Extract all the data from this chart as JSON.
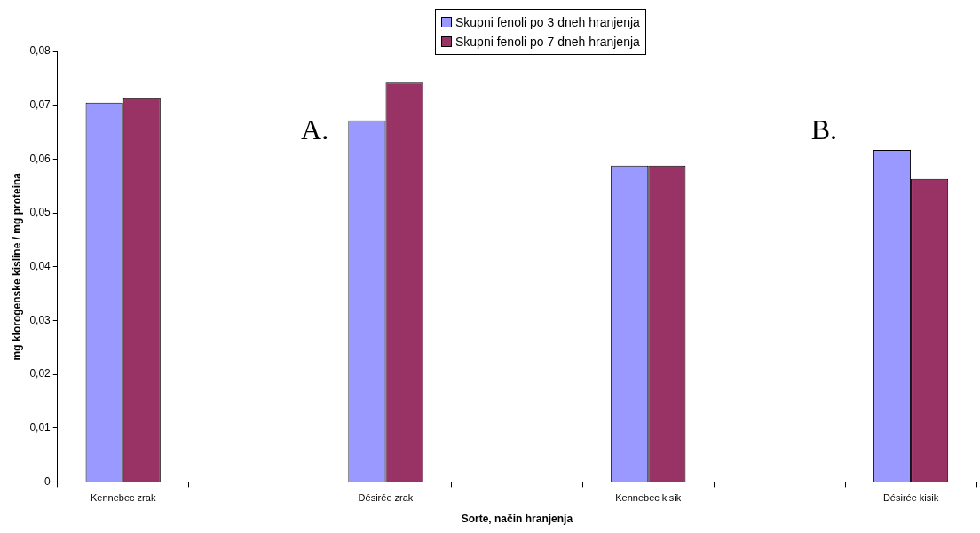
{
  "chart_data": {
    "type": "bar",
    "xlabel": "Sorte, način hranjenja",
    "ylabel": "mg klorogenske kisline / mg proteina",
    "categories": [
      "Kennebec zrak",
      null,
      "Désirée zrak",
      null,
      "Kennebec kisik",
      null,
      "Désirée kisik"
    ],
    "series": [
      {
        "name": "Skupni fenoli po 3 dneh hranjenja",
        "color": "#9999ff",
        "values": [
          0.0705,
          null,
          0.0672,
          null,
          0.0588,
          null,
          0.0617
        ]
      },
      {
        "name": "Skupni fenoli po 7 dneh hranjenja",
        "color": "#993366",
        "values": [
          0.0713,
          null,
          0.0742,
          null,
          0.0588,
          null,
          0.0563
        ]
      }
    ],
    "ylim": [
      0,
      0.08
    ],
    "yticks": [
      {
        "value": 0,
        "label": "0"
      },
      {
        "value": 0.01,
        "label": "0,01"
      },
      {
        "value": 0.02,
        "label": "0,02"
      },
      {
        "value": 0.03,
        "label": "0,03"
      },
      {
        "value": 0.04,
        "label": "0,04"
      },
      {
        "value": 0.05,
        "label": "0,05"
      },
      {
        "value": 0.06,
        "label": "0,06"
      },
      {
        "value": 0.07,
        "label": "0,07"
      },
      {
        "value": 0.08,
        "label": "0,08"
      }
    ],
    "annotations": [
      "A.",
      "B."
    ],
    "legend": "top",
    "grid": false
  }
}
